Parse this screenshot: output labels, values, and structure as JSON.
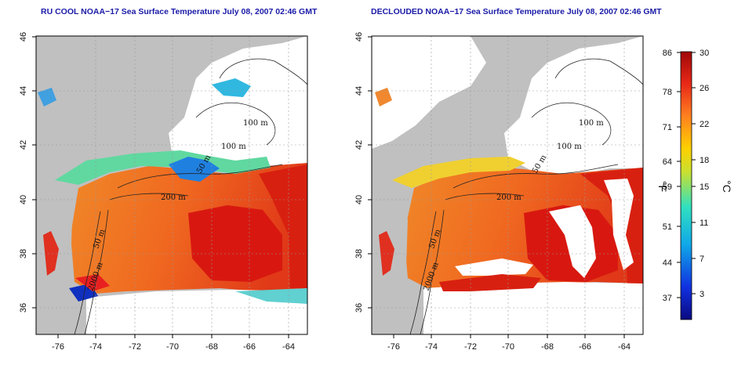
{
  "titles": {
    "left": "RU COOL NOAA−17 Sea Surface Temperature July 08, 2007 02:46 GMT",
    "right": "DECLOUDED NOAA−17 Sea Surface Temperature July 08, 2007 02:46 GMT"
  },
  "axes": {
    "lon_ticks": [
      "-76",
      "-74",
      "-72",
      "-70",
      "-68",
      "-66",
      "-64"
    ],
    "lat_ticks": [
      "46",
      "44",
      "42",
      "40",
      "38",
      "36"
    ]
  },
  "contour_labels": {
    "m100a": "100 m",
    "m100b": "100 m",
    "m50": "50 m",
    "m200": "200 m",
    "m50s": "50 m",
    "m2000": "2000 m"
  },
  "colorbar": {
    "fahrenheit_ticks": [
      "86",
      "78",
      "71",
      "64",
      "59",
      "51",
      "44",
      "37"
    ],
    "celsius_ticks": [
      "30",
      "26",
      "22",
      "18",
      "15",
      "11",
      "7",
      "3"
    ],
    "fahrenheit_unit": "°F",
    "celsius_unit": "°C",
    "range_c": [
      0,
      30
    ]
  },
  "colors": {
    "land": "#c0c0c0",
    "cloud": "#ffffff",
    "warm": "#e02818",
    "hot": "#c81010",
    "mid": "#f07020",
    "cool": "#20c0e0",
    "cold": "#1030d0"
  }
}
